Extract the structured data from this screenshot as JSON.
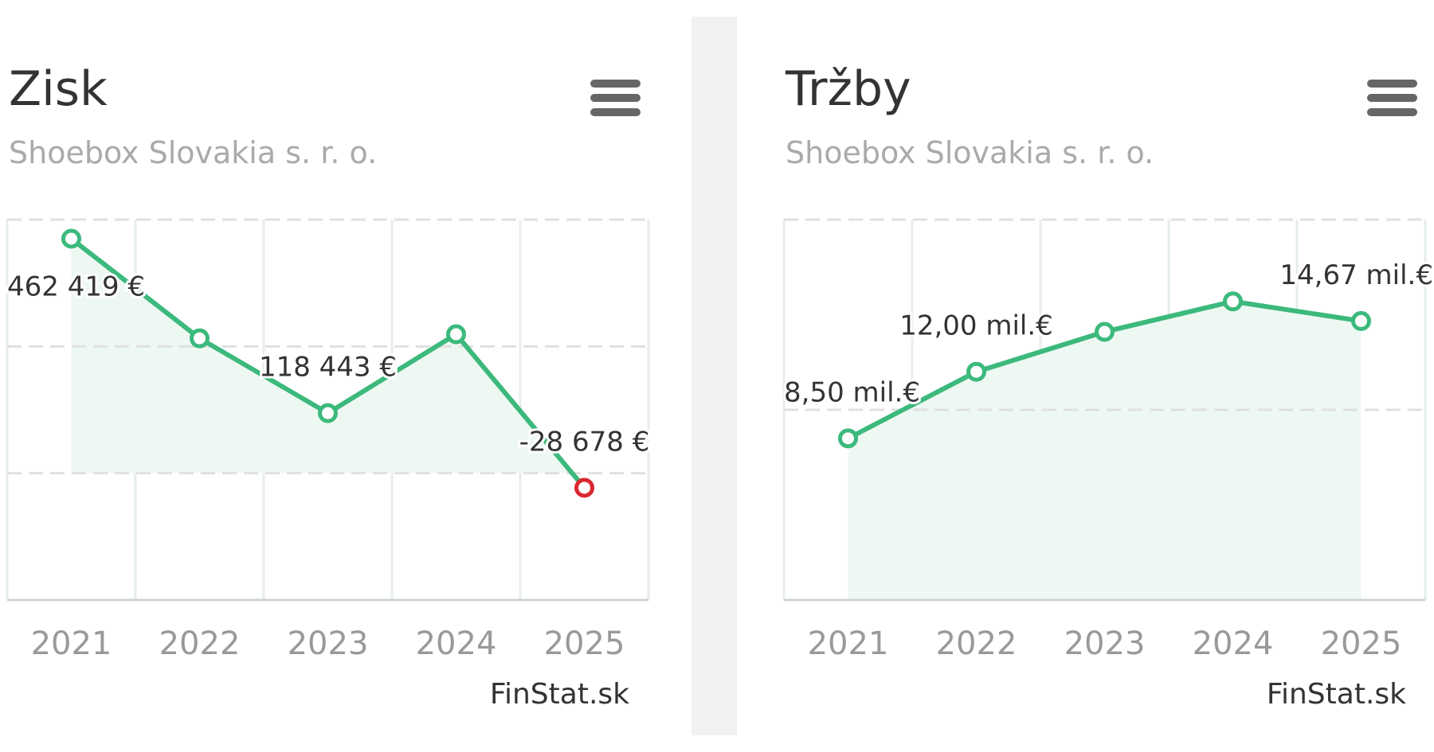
{
  "chart_data": [
    {
      "type": "line",
      "title": "Zisk",
      "subtitle": "Shoebox Slovakia s. r. o.",
      "categories": [
        "2021",
        "2022",
        "2023",
        "2024",
        "2025"
      ],
      "values": [
        462419,
        266000,
        118443,
        274000,
        -28678
      ],
      "value_labels": [
        "462 419 €",
        null,
        "118 443 €",
        null,
        "-28 678 €"
      ],
      "color": "#3cb97c",
      "area_color": "#eef8f3",
      "negative_color": "#d9272e",
      "ylim": [
        -250000,
        500000
      ],
      "yticks": [
        -250000,
        0,
        250000,
        500000
      ],
      "grid": true,
      "credit": "FinStat.sk"
    },
    {
      "type": "line",
      "title": "Tržby",
      "subtitle": "Shoebox Slovakia s. r. o.",
      "categories": [
        "2021",
        "2022",
        "2023",
        "2024",
        "2025"
      ],
      "values": [
        8.5,
        12.0,
        14.1,
        15.7,
        14.67
      ],
      "value_labels": [
        "8,50 mil.€",
        "12,00 mil.€",
        null,
        null,
        "14,67 mil.€"
      ],
      "color": "#3cb97c",
      "area_color": "#eef8f3",
      "negative_color": "#d9272e",
      "ylim": [
        0,
        20
      ],
      "yticks": [
        0,
        10,
        20
      ],
      "grid": true,
      "credit": "FinStat.sk"
    }
  ]
}
